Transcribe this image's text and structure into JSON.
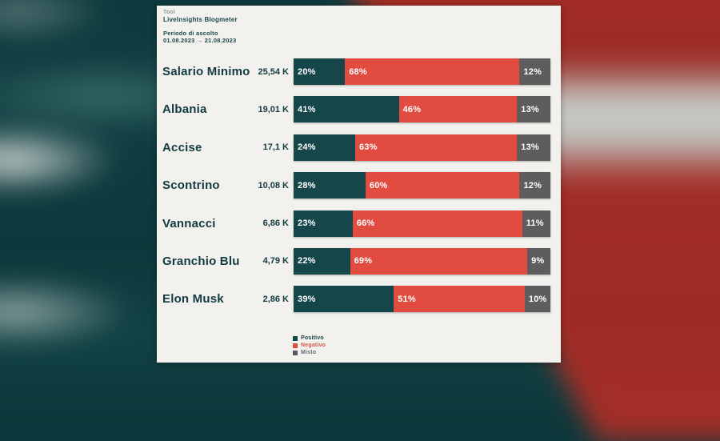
{
  "header": {
    "tool_label": "Tool",
    "tool_name": "LiveInsights Blogmeter",
    "period_label": "Periodo di ascolto",
    "period_value": "01.08.2023 → 21.08.2023"
  },
  "legend": {
    "items": [
      {
        "label": "Positivo",
        "color": "#15464a",
        "label_color": "#1d4549"
      },
      {
        "label": "Negativo",
        "color": "#e14b40",
        "label_color": "#d4584e"
      },
      {
        "label": "Misto",
        "color": "#585661",
        "label_color": "#6b6974"
      }
    ]
  },
  "chart_data": {
    "type": "bar",
    "orientation": "horizontal",
    "stacked": true,
    "unit": "percent_of_mentions",
    "value_suffix": "%",
    "categories": [
      "Salario Minimo",
      "Albania",
      "Accise",
      "Scontrino",
      "Vannacci",
      "Granchio Blu",
      "Elon Musk"
    ],
    "volumes": [
      "25,54 K",
      "19,01 K",
      "17,1 K",
      "10,08 K",
      "6,86 K",
      "4,79 K",
      "2,86 K"
    ],
    "series": [
      {
        "name": "Positivo",
        "color": "#15464a",
        "values": [
          20,
          41,
          24,
          28,
          23,
          22,
          39
        ]
      },
      {
        "name": "Negativo",
        "color": "#e14b40",
        "values": [
          68,
          46,
          63,
          60,
          66,
          69,
          51
        ]
      },
      {
        "name": "Misto",
        "color": "#5e5c5c",
        "values": [
          12,
          13,
          13,
          12,
          11,
          9,
          10
        ]
      }
    ],
    "legend_position": "bottom",
    "grid": false
  },
  "colors": {
    "card_background": "#f2f1ee",
    "background_teal": "#0e393c",
    "background_red": "#9e2c25",
    "text_dark_teal": "#123b40"
  }
}
